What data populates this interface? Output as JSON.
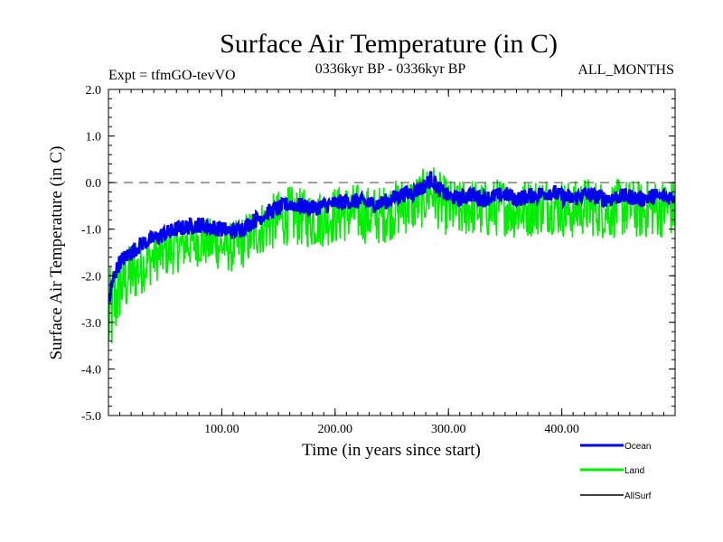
{
  "chart_data": {
    "type": "line",
    "title": "Surface Air Temperature (in C)",
    "subtitle_left": "Expt = tfmGO-tevVO",
    "subtitle_center": "0336kyr BP - 0336kyr BP",
    "subtitle_right": "ALL_MONTHS",
    "xlabel": "Time (in years since start)",
    "ylabel": "Surface Air Temperature (in C)",
    "xlim": [
      0,
      500
    ],
    "ylim": [
      -5.0,
      2.0
    ],
    "xticks": [
      100,
      200,
      300,
      400
    ],
    "xtick_labels": [
      "100.00",
      "200.00",
      "300.00",
      "400.00"
    ],
    "yticks": [
      -5.0,
      -4.0,
      -3.0,
      -2.0,
      -1.0,
      0.0,
      1.0,
      2.0
    ],
    "ytick_labels": [
      "-5.0",
      "-4.0",
      "-3.0",
      "-2.0",
      "-1.0",
      "0.0",
      "1.0",
      "2.0"
    ],
    "reference_line": {
      "y": 0.0,
      "style": "dashed"
    },
    "grid": false,
    "legend_position": "bottom-right",
    "series": [
      {
        "name": "Ocean",
        "color": "#0000ee",
        "x": [
          0,
          5,
          10,
          20,
          30,
          40,
          50,
          60,
          70,
          80,
          90,
          100,
          110,
          120,
          130,
          140,
          150,
          160,
          170,
          180,
          190,
          200,
          210,
          220,
          230,
          240,
          250,
          260,
          270,
          280,
          285,
          290,
          300,
          310,
          320,
          330,
          340,
          350,
          360,
          370,
          380,
          390,
          400,
          410,
          420,
          430,
          440,
          450,
          460,
          470,
          480,
          490,
          500
        ],
        "y": [
          -2.6,
          -2.0,
          -1.7,
          -1.5,
          -1.3,
          -1.2,
          -1.1,
          -1.0,
          -0.95,
          -0.9,
          -0.95,
          -1.0,
          -1.05,
          -0.95,
          -0.8,
          -0.65,
          -0.55,
          -0.45,
          -0.5,
          -0.55,
          -0.5,
          -0.45,
          -0.4,
          -0.4,
          -0.45,
          -0.45,
          -0.35,
          -0.25,
          -0.2,
          -0.05,
          0.1,
          -0.1,
          -0.3,
          -0.35,
          -0.25,
          -0.35,
          -0.3,
          -0.25,
          -0.35,
          -0.3,
          -0.25,
          -0.2,
          -0.3,
          -0.35,
          -0.25,
          -0.3,
          -0.35,
          -0.3,
          -0.3,
          -0.35,
          -0.3,
          -0.3,
          -0.3
        ]
      },
      {
        "name": "Land",
        "color": "#00ee00",
        "x": [
          0,
          5,
          10,
          20,
          30,
          40,
          50,
          60,
          70,
          80,
          90,
          100,
          110,
          120,
          130,
          140,
          150,
          160,
          170,
          180,
          190,
          200,
          210,
          220,
          230,
          240,
          250,
          260,
          270,
          280,
          285,
          290,
          300,
          310,
          320,
          330,
          340,
          350,
          360,
          370,
          380,
          390,
          400,
          410,
          420,
          430,
          440,
          450,
          460,
          470,
          480,
          490,
          500
        ],
        "y": [
          -3.0,
          -2.6,
          -2.2,
          -2.0,
          -1.8,
          -1.6,
          -1.5,
          -1.4,
          -1.3,
          -1.25,
          -1.3,
          -1.35,
          -1.4,
          -1.25,
          -1.05,
          -0.9,
          -0.8,
          -0.7,
          -0.75,
          -0.8,
          -0.75,
          -0.7,
          -0.65,
          -0.65,
          -0.7,
          -0.7,
          -0.6,
          -0.5,
          -0.45,
          -0.3,
          -0.15,
          -0.35,
          -0.55,
          -0.6,
          -0.5,
          -0.6,
          -0.55,
          -0.5,
          -0.6,
          -0.55,
          -0.5,
          -0.45,
          -0.55,
          -0.6,
          -0.5,
          -0.55,
          -0.6,
          -0.55,
          -0.55,
          -0.6,
          -0.55,
          -0.55,
          -0.55
        ],
        "amplitude": [
          1.3,
          1.2,
          1.0,
          0.8,
          0.7,
          0.65,
          0.65,
          0.65,
          0.65,
          0.65,
          0.65,
          0.65,
          0.65,
          0.7,
          0.7,
          0.7,
          0.75,
          0.75,
          0.75,
          0.75,
          0.75,
          0.75,
          0.75,
          0.75,
          0.75,
          0.75,
          0.75,
          0.75,
          0.75,
          0.75,
          0.75,
          0.75,
          0.75,
          0.75,
          0.75,
          0.75,
          0.75,
          0.75,
          0.75,
          0.75,
          0.75,
          0.75,
          0.75,
          0.75,
          0.75,
          0.75,
          0.75,
          0.75,
          0.75,
          0.75,
          0.75,
          0.75,
          0.75
        ]
      },
      {
        "name": "AllSurf",
        "color": "#000000",
        "x": [],
        "y": []
      }
    ]
  }
}
